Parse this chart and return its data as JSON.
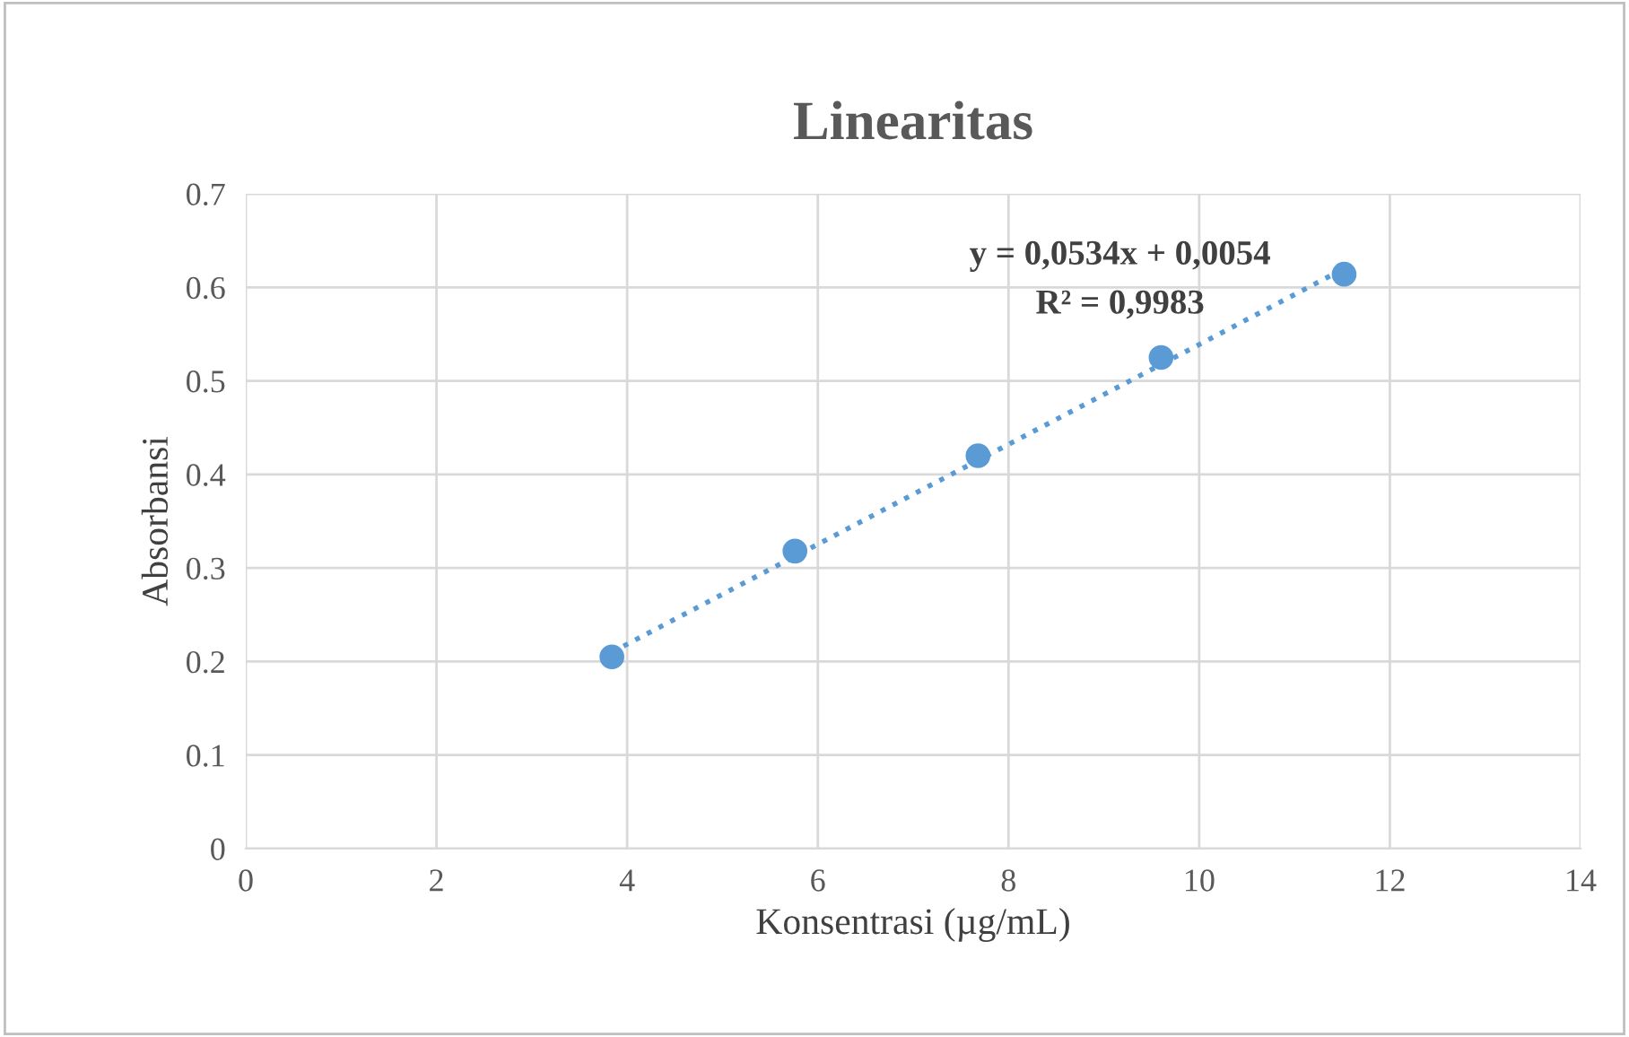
{
  "chart_data": {
    "type": "scatter",
    "title": "Linearitas",
    "xlabel": "Konsentrasi (µg/mL)",
    "ylabel": "Absorbansi",
    "series": [
      {
        "color": "#5b9bd5",
        "x": [
          3.84,
          5.76,
          7.68,
          9.6,
          11.52
        ],
        "values": [
          0.205,
          0.318,
          0.42,
          0.525,
          0.614
        ],
        "marker": "circle"
      },
      {
        "type": "line",
        "color": "#5b9bd5",
        "x": [
          3.84,
          11.52
        ],
        "values": [
          0.21,
          0.62
        ],
        "line_style": "dotted"
      }
    ],
    "annotations": [
      "y = 0,0534x + 0,0054",
      "R² = 0,9983"
    ],
    "xlim": [
      0,
      14
    ],
    "xticks": [
      0,
      2,
      4,
      6,
      8,
      10,
      12,
      14
    ],
    "ylim": [
      0,
      0.7
    ],
    "yticks": [
      {
        "value": 0,
        "label": "0"
      },
      {
        "value": 0.1,
        "label": "0.1"
      },
      {
        "value": 0.2,
        "label": "0.2"
      },
      {
        "value": 0.3,
        "label": "0.3"
      },
      {
        "value": 0.4,
        "label": "0.4"
      },
      {
        "value": 0.5,
        "label": "0.5"
      },
      {
        "value": 0.6,
        "label": "0.6"
      },
      {
        "value": 0.7,
        "label": "0.7"
      }
    ],
    "grid": true
  }
}
